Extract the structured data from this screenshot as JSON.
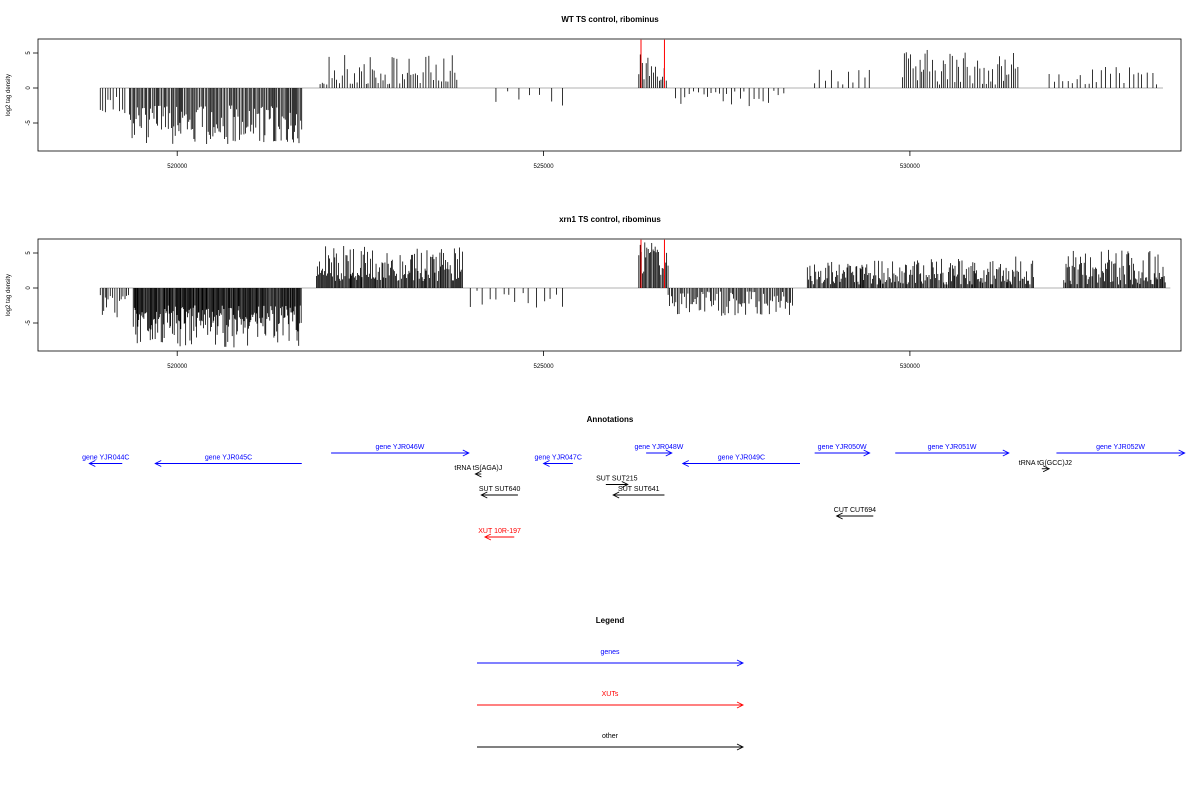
{
  "chart_data": [
    {
      "type": "bar",
      "title": "WT TS control, ribominus",
      "ylabel": "log2 tag density",
      "xlim": [
        518100,
        533700
      ],
      "ylim": [
        -9,
        7
      ],
      "x_ticks": [
        520000,
        525000,
        530000
      ],
      "y_ticks": [
        -5,
        0,
        5
      ],
      "highlight_x": [
        526330,
        526650
      ],
      "highlight_color": "#ff0000",
      "bar_color": "#000000",
      "regions": [
        {
          "start": 518950,
          "end": 519330,
          "step": 40,
          "min": 1.2,
          "max": 4.2,
          "sign": -1
        },
        {
          "start": 519350,
          "end": 521700,
          "step": 18,
          "min": 2.5,
          "max": 8.0,
          "sign": -1
        },
        {
          "start": 521950,
          "end": 523850,
          "step": 32,
          "min": 0.5,
          "max": 4.8,
          "sign": 1
        },
        {
          "start": 524350,
          "end": 525300,
          "step": 130,
          "min": 0.4,
          "max": 2.5,
          "sign": -1
        },
        {
          "start": 526300,
          "end": 526700,
          "step": 25,
          "min": 1.0,
          "max": 5.5,
          "sign": 1
        },
        {
          "start": 526800,
          "end": 528300,
          "step": 60,
          "min": 0.4,
          "max": 2.8,
          "sign": -1
        },
        {
          "start": 528700,
          "end": 529500,
          "step": 70,
          "min": 0.5,
          "max": 3.5,
          "sign": 1
        },
        {
          "start": 529900,
          "end": 531500,
          "step": 30,
          "min": 0.5,
          "max": 5.5,
          "sign": 1
        },
        {
          "start": 531900,
          "end": 533400,
          "step": 60,
          "min": 0.5,
          "max": 3.0,
          "sign": 1
        }
      ]
    },
    {
      "type": "bar",
      "title": "xrn1 TS control, ribominus",
      "ylabel": "log2 tag density",
      "xlim": [
        518100,
        533700
      ],
      "ylim": [
        -9,
        7
      ],
      "x_ticks": [
        520000,
        525000,
        530000
      ],
      "y_ticks": [
        -5,
        0,
        5
      ],
      "highlight_x": [
        526330,
        526650
      ],
      "highlight_color": "#ff0000",
      "bar_color": "#000000",
      "regions": [
        {
          "start": 518950,
          "end": 519350,
          "step": 25,
          "min": 1.0,
          "max": 5.0,
          "sign": -1
        },
        {
          "start": 519400,
          "end": 521700,
          "step": 12,
          "min": 2.5,
          "max": 8.5,
          "sign": -1
        },
        {
          "start": 521900,
          "end": 523900,
          "step": 14,
          "min": 1.0,
          "max": 6.0,
          "sign": 1
        },
        {
          "start": 524000,
          "end": 525300,
          "step": 90,
          "min": 0.3,
          "max": 3.0,
          "sign": -1
        },
        {
          "start": 526300,
          "end": 526700,
          "step": 15,
          "min": 1.5,
          "max": 7.0,
          "sign": 1
        },
        {
          "start": 526700,
          "end": 528400,
          "step": 20,
          "min": 0.5,
          "max": 4.0,
          "sign": -1
        },
        {
          "start": 528600,
          "end": 529600,
          "step": 15,
          "min": 0.5,
          "max": 4.0,
          "sign": 1
        },
        {
          "start": 529600,
          "end": 531700,
          "step": 15,
          "min": 0.5,
          "max": 4.5,
          "sign": 1
        },
        {
          "start": 532100,
          "end": 533500,
          "step": 15,
          "min": 0.5,
          "max": 5.5,
          "sign": 1
        }
      ]
    }
  ],
  "annotations": {
    "title": "Annotations",
    "items": [
      {
        "label": "gene YJR044C",
        "start": 518800,
        "end": 519250,
        "strand": "-",
        "row": 1,
        "type": "gene"
      },
      {
        "label": "gene YJR045C",
        "start": 519700,
        "end": 521700,
        "strand": "-",
        "row": 1,
        "type": "gene"
      },
      {
        "label": "gene YJR046W",
        "start": 522100,
        "end": 523980,
        "strand": "+",
        "row": 0,
        "type": "gene"
      },
      {
        "label": "gene YJR047C",
        "start": 525000,
        "end": 525400,
        "strand": "-",
        "row": 1,
        "type": "gene"
      },
      {
        "label": "gene YJR048W",
        "start": 526400,
        "end": 526750,
        "strand": "+",
        "row": 0,
        "type": "gene"
      },
      {
        "label": "gene YJR049C",
        "start": 526900,
        "end": 528500,
        "strand": "-",
        "row": 1,
        "type": "gene"
      },
      {
        "label": "gene YJR050W",
        "start": 528700,
        "end": 529450,
        "strand": "+",
        "row": 0,
        "type": "gene"
      },
      {
        "label": "gene YJR051W",
        "start": 529800,
        "end": 531350,
        "strand": "+",
        "row": 0,
        "type": "gene"
      },
      {
        "label": "gene YJR052W",
        "start": 532000,
        "end": 533750,
        "strand": "+",
        "row": 0,
        "type": "gene"
      },
      {
        "label": "tRNA tS(AGA)J",
        "start": 524070,
        "end": 524150,
        "strand": "-",
        "row": 2,
        "type": "other"
      },
      {
        "label": "SUT SUT640",
        "start": 524150,
        "end": 524650,
        "strand": "-",
        "row": 4,
        "type": "other"
      },
      {
        "label": "SUT SUT215",
        "start": 525850,
        "end": 526150,
        "strand": "+",
        "row": 3,
        "type": "other"
      },
      {
        "label": "SUT SUT641",
        "start": 525950,
        "end": 526650,
        "strand": "-",
        "row": 4,
        "type": "other"
      },
      {
        "label": "tRNA tG(GCC)J2",
        "start": 531800,
        "end": 531900,
        "strand": "+",
        "row": 1.5,
        "type": "other"
      },
      {
        "label": "CUT CUT694",
        "start": 529000,
        "end": 529500,
        "strand": "-",
        "row": 6,
        "type": "other"
      },
      {
        "label": "XUT 10R-197",
        "start": 524200,
        "end": 524600,
        "strand": "-",
        "row": 8,
        "type": "xut"
      }
    ]
  },
  "legend": {
    "title": "Legend",
    "items": [
      {
        "label": "genes",
        "type": "gene"
      },
      {
        "label": "XUTs",
        "type": "xut"
      },
      {
        "label": "other",
        "type": "other"
      }
    ]
  },
  "colors": {
    "gene": "#0000ff",
    "xut": "#ff0000",
    "other": "#000000"
  }
}
